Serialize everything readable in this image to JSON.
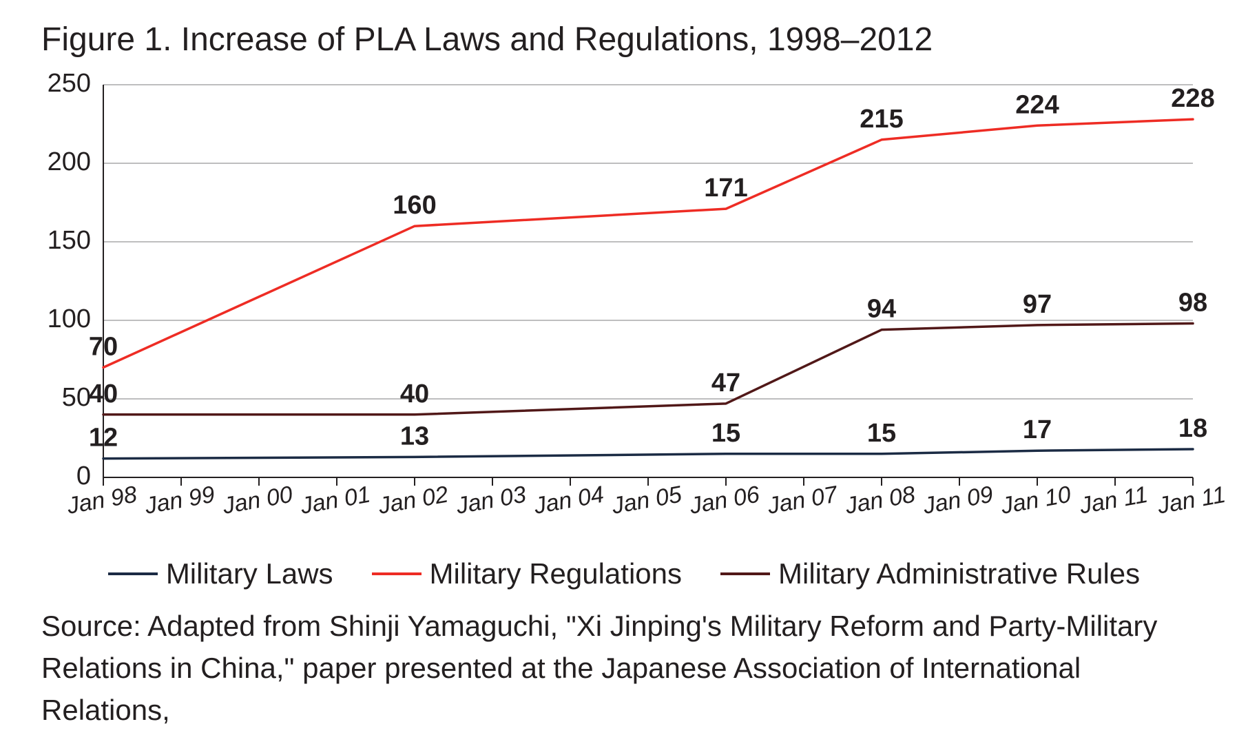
{
  "title": "Figure 1. Increase of PLA Laws and Regulations, 1998–2012",
  "chart": {
    "type": "line",
    "background_color": "#ffffff",
    "grid_color": "#a9a9aa",
    "axis_color": "#231f20",
    "line_width": 3.5,
    "yaxis": {
      "min": 0,
      "max": 250,
      "tick_step": 50,
      "ticks": [
        0,
        50,
        100,
        150,
        200,
        250
      ],
      "tick_labels": [
        "0",
        "50",
        "100",
        "150",
        "200",
        "250"
      ],
      "tick_fontsize": 38
    },
    "xaxis": {
      "categories": [
        "Jan 98",
        "Jan 99",
        "Jan 00",
        "Jan 01",
        "Jan 02",
        "Jan 03",
        "Jan 04",
        "Jan 05",
        "Jan 06",
        "Jan 07",
        "Jan 08",
        "Jan 09",
        "Jan 10",
        "Jan 11",
        "Jan 11"
      ],
      "tick_fontsize": 34,
      "label_rotation_deg": -10
    },
    "series": [
      {
        "name": "Military Laws",
        "color": "#1b2b44",
        "points": [
          {
            "x": 0,
            "y": 12,
            "label": "12"
          },
          {
            "x": 4,
            "y": 13,
            "label": "13"
          },
          {
            "x": 8,
            "y": 15,
            "label": "15"
          },
          {
            "x": 10,
            "y": 15,
            "label": "15"
          },
          {
            "x": 12,
            "y": 17,
            "label": "17"
          },
          {
            "x": 14,
            "y": 18,
            "label": "18"
          }
        ]
      },
      {
        "name": "Military Regulations",
        "color": "#ee2c24",
        "points": [
          {
            "x": 0,
            "y": 70,
            "label": "70"
          },
          {
            "x": 4,
            "y": 160,
            "label": "160"
          },
          {
            "x": 8,
            "y": 171,
            "label": "171"
          },
          {
            "x": 10,
            "y": 215,
            "label": "215"
          },
          {
            "x": 12,
            "y": 224,
            "label": "224"
          },
          {
            "x": 14,
            "y": 228,
            "label": "228"
          }
        ]
      },
      {
        "name": "Military Administrative Rules",
        "color": "#511818",
        "points": [
          {
            "x": 0,
            "y": 40,
            "label": "40"
          },
          {
            "x": 4,
            "y": 40,
            "label": "40"
          },
          {
            "x": 8,
            "y": 47,
            "label": "47"
          },
          {
            "x": 10,
            "y": 94,
            "label": "94"
          },
          {
            "x": 12,
            "y": 97,
            "label": "97"
          },
          {
            "x": 14,
            "y": 98,
            "label": "98"
          }
        ]
      }
    ],
    "data_label_fontsize": 38,
    "data_label_fontweight": 700
  },
  "legend": {
    "items": [
      {
        "label": "Military Laws",
        "color": "#1b2b44"
      },
      {
        "label": "Military Regulations",
        "color": "#ee2c24"
      },
      {
        "label": "Military Administrative Rules",
        "color": "#511818"
      }
    ],
    "fontsize": 42
  },
  "source": "Source: Adapted from Shinji Yamaguchi, \"Xi Jinping's Military Reform and Party-Military Relations in China,\" paper presented at the Japanese Association of International Relations,"
}
